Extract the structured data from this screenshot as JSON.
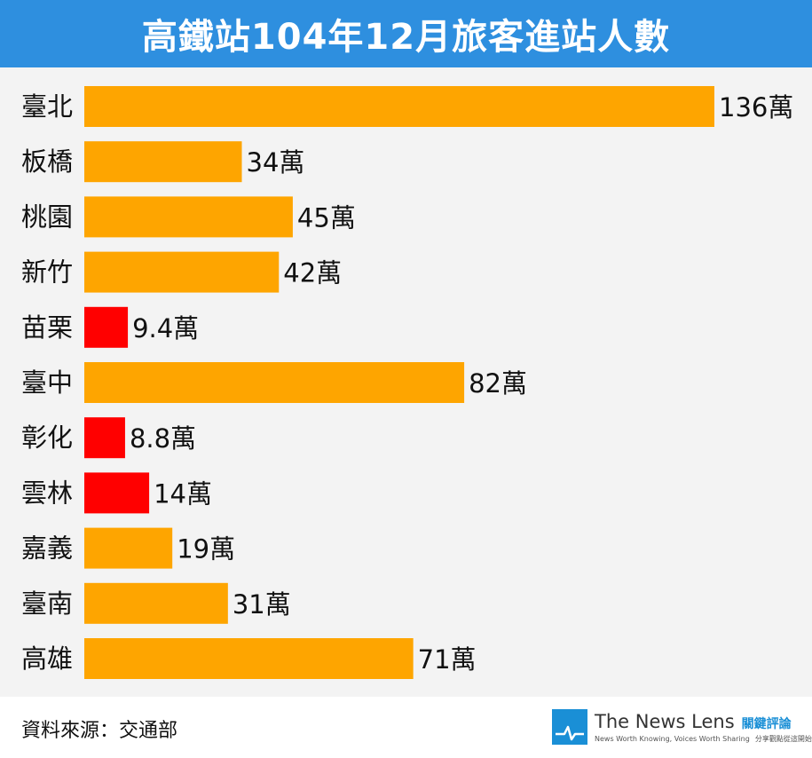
{
  "chart_data": {
    "type": "bar",
    "orientation": "horizontal",
    "title": "高鐵站104年12月旅客進站人數",
    "categories": [
      "臺北",
      "板橋",
      "桃園",
      "新竹",
      "苗栗",
      "臺中",
      "彰化",
      "雲林",
      "嘉義",
      "臺南",
      "高雄"
    ],
    "values": [
      136,
      34,
      45,
      42,
      9.4,
      82,
      8.8,
      14,
      19,
      31,
      71
    ],
    "value_labels": [
      "136萬",
      "34萬",
      "45萬",
      "42萬",
      "9.4萬",
      "82萬",
      "8.8萬",
      "14萬",
      "19萬",
      "31萬",
      "71萬"
    ],
    "unit": "萬",
    "xlim": [
      0,
      136
    ],
    "grid": false,
    "legend": "none",
    "bar_colors": [
      "#fea500",
      "#fea500",
      "#fea500",
      "#fea500",
      "#ff0000",
      "#fea500",
      "#ff0000",
      "#ff0000",
      "#fea500",
      "#fea500",
      "#fea500"
    ]
  },
  "colors": {
    "title_bar": "#2e8fdf",
    "plot_background": "#f3f3f3",
    "bar_default": "#fea500",
    "bar_highlight": "#ff0000",
    "brand_blue": "#1a8fd6"
  },
  "footer": {
    "source": "資料來源：交通部",
    "brand_name": "The News Lens",
    "brand_cn": "關鍵評論",
    "tagline": "News Worth Knowing, Voices Worth Sharing",
    "tagline_cn": "分享觀點從這開始",
    "logo_icon": "pulse-line-icon"
  }
}
